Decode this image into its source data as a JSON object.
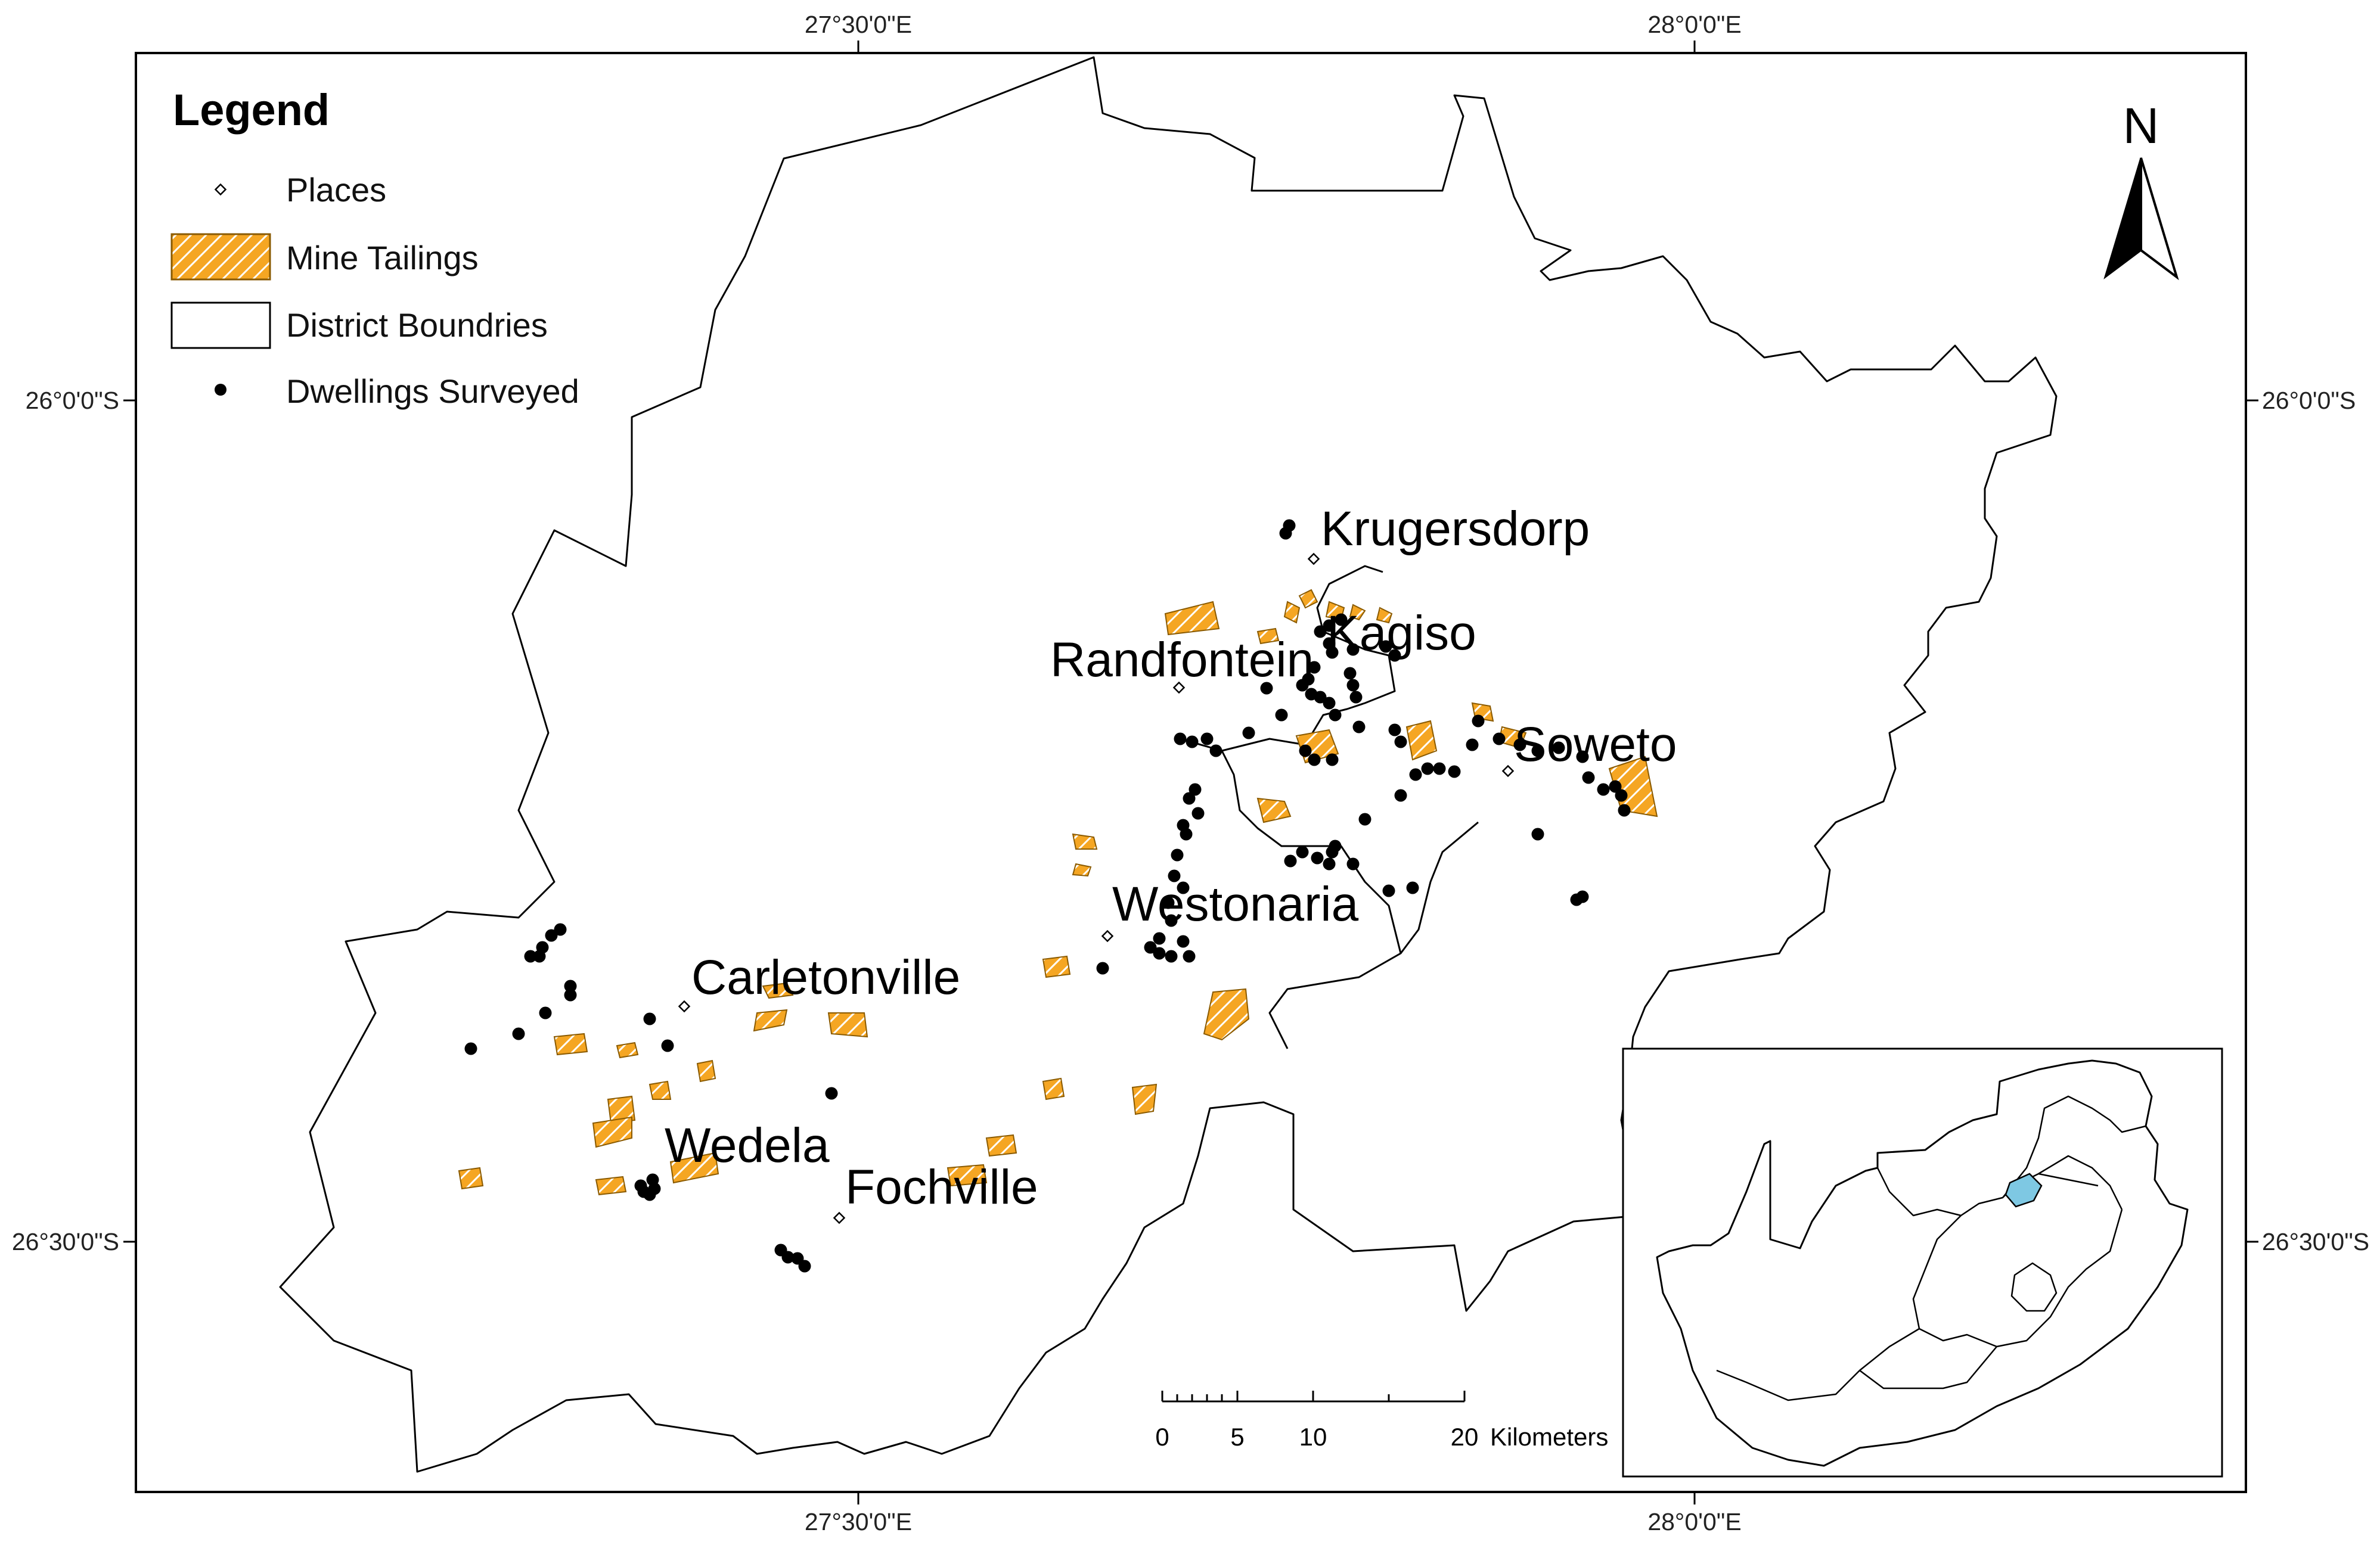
{
  "graticule": {
    "lon_top_left": "27°30'0\"E",
    "lon_top_right": "28°0'0\"E",
    "lon_bottom_left": "27°30'0\"E",
    "lon_bottom_right": "28°0'0\"E",
    "lat_left_top": "26°0'0\"S",
    "lat_left_bottom": "26°30'0\"S",
    "lat_right_top": "26°0'0\"S",
    "lat_right_bottom": "26°30'0\"S"
  },
  "legend": {
    "title": "Legend",
    "items": [
      {
        "label": "Places",
        "symbol": "hollow-diamond-icon"
      },
      {
        "label": "Mine Tailings",
        "symbol": "hatched-orange-polygon",
        "color": "#F5A623"
      },
      {
        "label": "District Boundries",
        "symbol": "hollow-rectangle"
      },
      {
        "label": "Dwellings Surveyed",
        "symbol": "black-dot-icon",
        "color": "#000000"
      }
    ]
  },
  "places": {
    "krugersdorp": "Krugersdorp",
    "kagiso": "Kagiso",
    "randfontein": "Randfontein",
    "soweto": "Soweto",
    "westonaria": "Westonaria",
    "carletonville": "Carletonville",
    "wedela": "Wedela",
    "fochville": "Fochville"
  },
  "north_arrow": {
    "label": "N"
  },
  "scale_bar": {
    "ticks": [
      "0",
      "5",
      "10",
      "20"
    ],
    "unit": "Kilometers"
  },
  "inset": {
    "description_icon": "south-africa-locator-map",
    "highlight_color": "#7EC8E3"
  },
  "colors": {
    "tailings_fill": "#F5A623",
    "tailings_hatch": "#FFFFFF",
    "dwellings": "#000000",
    "boundary": "#000000"
  }
}
